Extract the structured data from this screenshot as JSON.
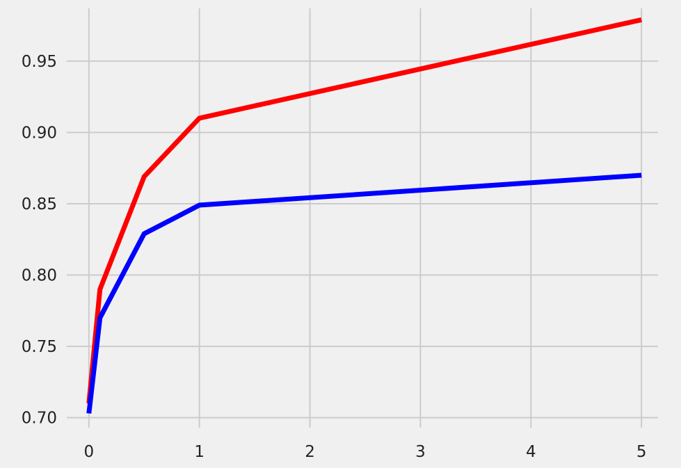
{
  "chart_data": {
    "type": "line",
    "title": "",
    "xlabel": "",
    "ylabel": "",
    "xlim": [
      -0.2,
      5.15
    ],
    "ylim": [
      0.693,
      0.987
    ],
    "grid": true,
    "legend": "none",
    "xticks": [
      0,
      1,
      2,
      3,
      4,
      5
    ],
    "yticks": [
      0.7,
      0.75,
      0.8,
      0.85,
      0.9,
      0.95
    ],
    "xtick_labels": [
      "0",
      "1",
      "2",
      "3",
      "4",
      "5"
    ],
    "ytick_labels": [
      "0.70",
      "0.75",
      "0.80",
      "0.85",
      "0.90",
      "0.95"
    ],
    "series": [
      {
        "color": "#ff0000",
        "x": [
          0,
          0.1,
          0.5,
          1,
          5
        ],
        "y": [
          0.71,
          0.79,
          0.869,
          0.91,
          0.979
        ]
      },
      {
        "color": "#0000ff",
        "x": [
          0,
          0.1,
          0.5,
          1,
          5
        ],
        "y": [
          0.703,
          0.77,
          0.829,
          0.849,
          0.87
        ]
      }
    ]
  }
}
